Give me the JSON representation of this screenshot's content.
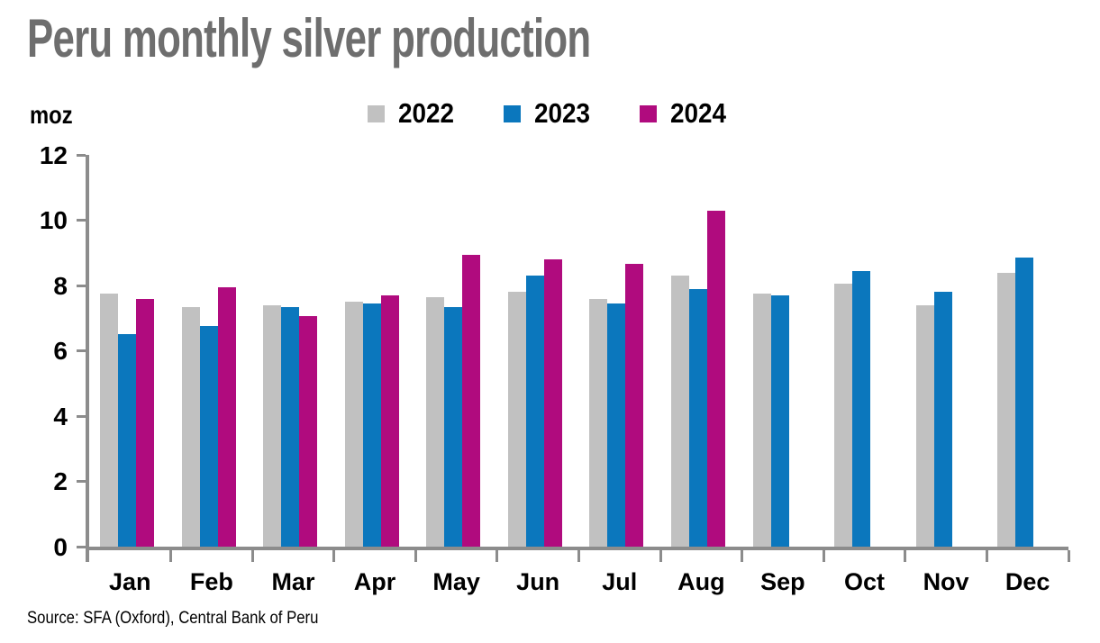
{
  "title": "Peru monthly silver production",
  "source_note": "Source: SFA (Oxford), Central Bank of Peru",
  "colors": {
    "title_text": "#6e6e6e",
    "axis": "#8c8c8c",
    "series_2022": "#c1c1c1",
    "series_2023": "#0b77bd",
    "series_2024": "#b00b7e"
  },
  "chart_data": {
    "type": "bar",
    "title": "Peru monthly silver production",
    "ylabel": "moz",
    "xlabel": "",
    "ylim": [
      0,
      12
    ],
    "yticks": [
      0,
      2,
      4,
      6,
      8,
      10,
      12
    ],
    "grid": false,
    "legend_position": "top-center",
    "categories": [
      "Jan",
      "Feb",
      "Mar",
      "Apr",
      "May",
      "Jun",
      "Jul",
      "Aug",
      "Sep",
      "Oct",
      "Nov",
      "Dec"
    ],
    "series": [
      {
        "name": "2022",
        "color": "#c1c1c1",
        "values": [
          7.75,
          7.35,
          7.4,
          7.5,
          7.65,
          7.8,
          7.6,
          8.3,
          7.75,
          8.05,
          7.4,
          8.4
        ]
      },
      {
        "name": "2023",
        "color": "#0b77bd",
        "values": [
          6.5,
          6.75,
          7.35,
          7.45,
          7.35,
          8.3,
          7.45,
          7.9,
          7.7,
          8.45,
          7.8,
          8.85
        ]
      },
      {
        "name": "2024",
        "color": "#b00b7e",
        "values": [
          7.6,
          7.95,
          7.05,
          7.7,
          8.95,
          8.8,
          8.65,
          10.3,
          null,
          null,
          null,
          null
        ]
      }
    ]
  }
}
